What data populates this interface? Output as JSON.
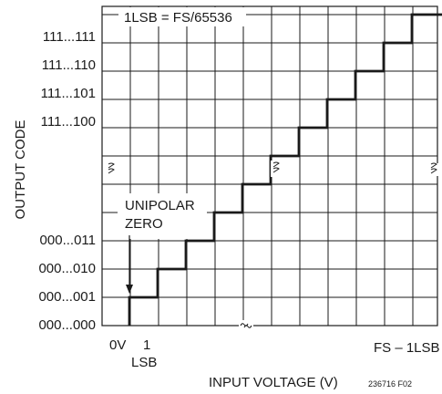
{
  "diagram": {
    "resolution_label": "1LSB = FS/65536",
    "y_axis_title": "OUTPUT CODE",
    "x_axis_title": "INPUT VOLTAGE (V)",
    "figure_id": "236716 F02",
    "y_codes_top": [
      "111...111",
      "111...110",
      "111...101",
      "111...100"
    ],
    "y_codes_bottom": [
      "000...011",
      "000...010",
      "000...001",
      "000...000"
    ],
    "x_label_zero": "0V",
    "x_label_one": "1",
    "x_label_one_unit": "LSB",
    "x_label_full_scale": "FS – 1LSB",
    "annotation_line1": "UNIPOLAR",
    "annotation_line2": "ZERO"
  }
}
